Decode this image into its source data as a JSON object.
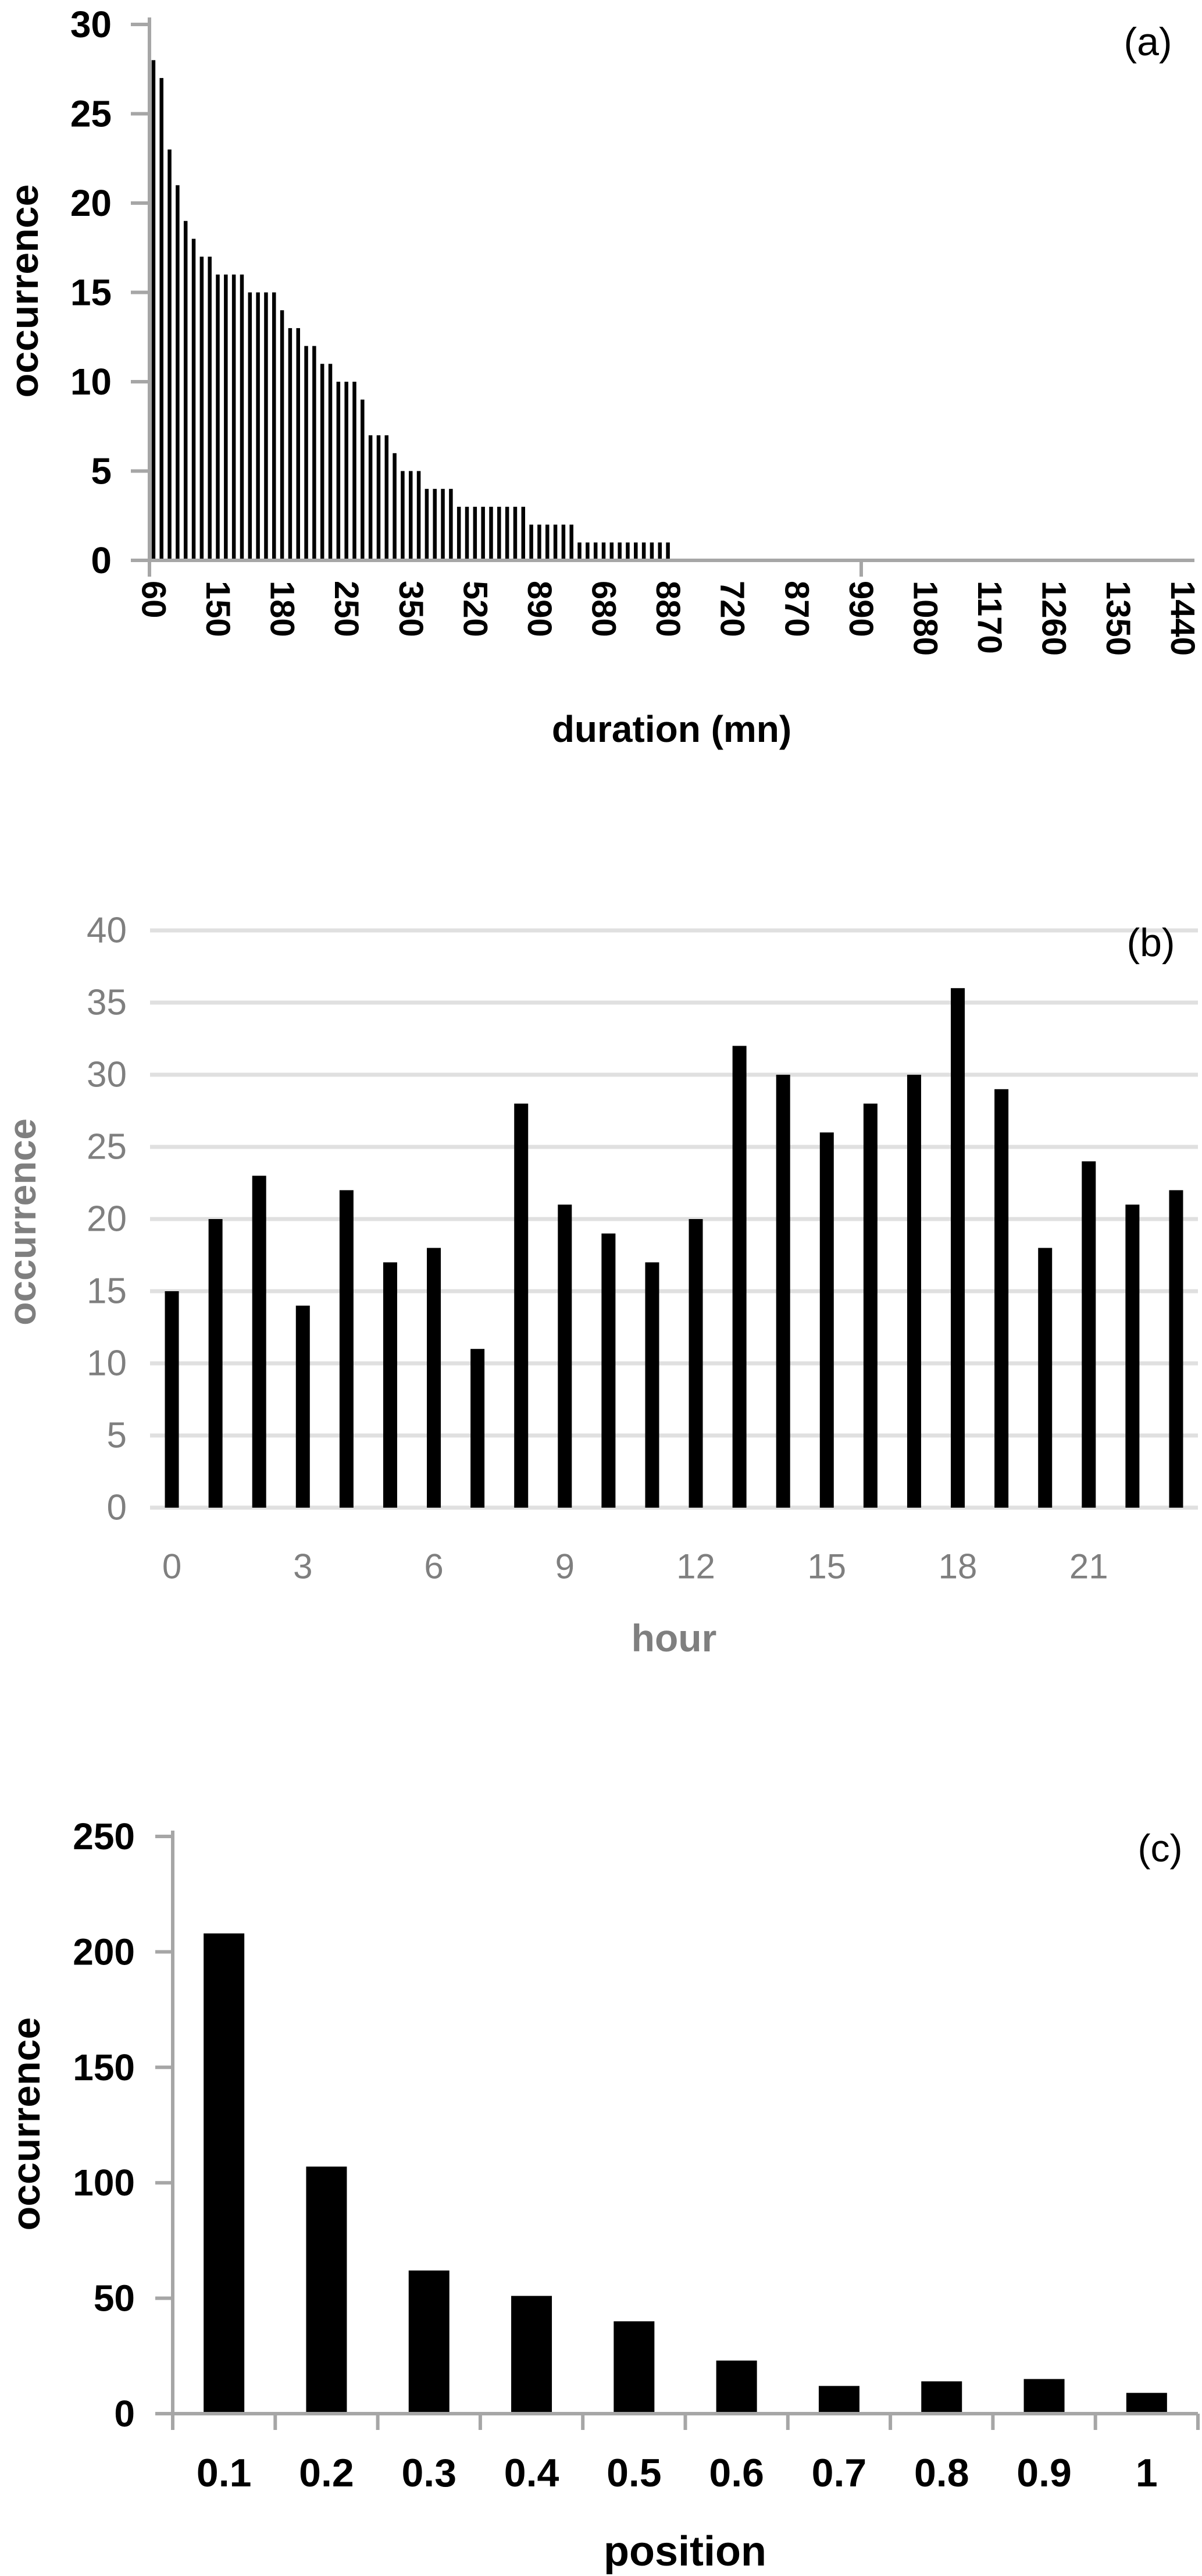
{
  "figure": {
    "background": "#ffffff",
    "panel_labels": [
      "(a)",
      "(b)",
      "(c)"
    ]
  },
  "chart_data": [
    {
      "type": "bar",
      "panel": "(a)",
      "xlabel": "duration (mn)",
      "ylabel": "occurrence",
      "ylim": [
        0,
        30
      ],
      "ytick_step": 5,
      "ytick_labels": [
        "0",
        "5",
        "10",
        "15",
        "20",
        "25",
        "30"
      ],
      "total_categories": 130,
      "label_every": 8,
      "xtick_labels": [
        "60",
        "150",
        "180",
        "250",
        "350",
        "520",
        "890",
        "680",
        "880",
        "720",
        "870",
        "990",
        "1080",
        "1170",
        "1260",
        "1350",
        "1440"
      ],
      "values": [
        28,
        27,
        23,
        21,
        19,
        18,
        17,
        17,
        16,
        16,
        16,
        16,
        15,
        15,
        15,
        15,
        14,
        13,
        13,
        12,
        12,
        11,
        11,
        10,
        10,
        10,
        9,
        7,
        7,
        7,
        6,
        5,
        5,
        5,
        4,
        4,
        4,
        4,
        3,
        3,
        3,
        3,
        3,
        3,
        3,
        3,
        3,
        2,
        2,
        2,
        2,
        2,
        2,
        1,
        1,
        1,
        1,
        1,
        1,
        1,
        1,
        1,
        1,
        1,
        1
      ],
      "remaining_categories_value": 0,
      "bar_color": "#000000",
      "axis_color": "#a6a6a6",
      "text_color": "#000000",
      "grid": false,
      "legend": "none"
    },
    {
      "type": "bar",
      "panel": "(b)",
      "xlabel": "hour",
      "ylabel": "occurrence",
      "ylim": [
        0,
        40
      ],
      "ytick_step": 5,
      "ytick_labels": [
        "0",
        "5",
        "10",
        "15",
        "20",
        "25",
        "30",
        "35",
        "40"
      ],
      "x": [
        0,
        1,
        2,
        3,
        4,
        5,
        6,
        7,
        8,
        9,
        10,
        11,
        12,
        13,
        14,
        15,
        16,
        17,
        18,
        19,
        20,
        21,
        22,
        23
      ],
      "labeled_hours": [
        "0",
        "3",
        "6",
        "9",
        "12",
        "15",
        "18",
        "21"
      ],
      "values": [
        15,
        20,
        23,
        14,
        22,
        17,
        18,
        11,
        28,
        21,
        19,
        17,
        20,
        32,
        30,
        26,
        28,
        30,
        36,
        29,
        18,
        24,
        21,
        22
      ],
      "bar_color": "#000000",
      "gridline_color": "#e0e0e0",
      "text_color": "#7f7f7f",
      "grid": true,
      "legend": "none"
    },
    {
      "type": "bar",
      "panel": "(c)",
      "xlabel": "position",
      "ylabel": "occurrence",
      "ylim": [
        0,
        250
      ],
      "ytick_step": 50,
      "ytick_labels": [
        "0",
        "50",
        "100",
        "150",
        "200",
        "250"
      ],
      "categories": [
        "0.1",
        "0.2",
        "0.3",
        "0.4",
        "0.5",
        "0.6",
        "0.7",
        "0.8",
        "0.9",
        "1"
      ],
      "values": [
        208,
        107,
        62,
        51,
        40,
        23,
        12,
        14,
        15,
        9
      ],
      "bar_color": "#000000",
      "axis_color": "#a6a6a6",
      "text_color": "#000000",
      "grid": false,
      "legend": "none"
    }
  ]
}
